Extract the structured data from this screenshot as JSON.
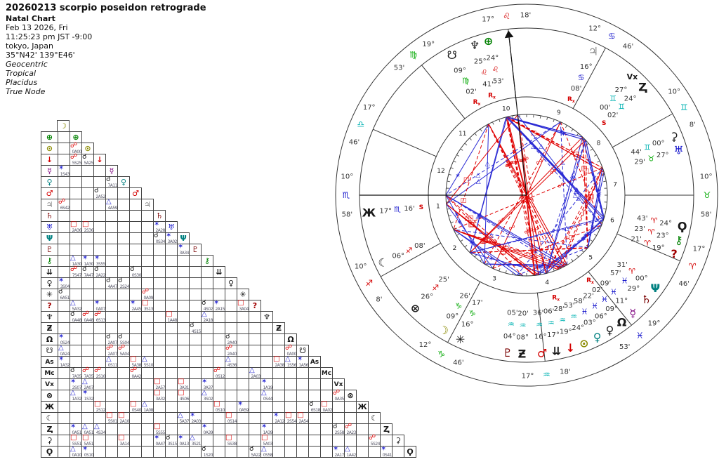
{
  "header": {
    "title": "20260213 scorpio poseidon retrograde",
    "chart_type": "Natal Chart",
    "date": "Feb 13 2026, Fri",
    "time": "11:25:23 pm  JST -9:00",
    "place": "tokyo, Japan",
    "coordinates": "35°N42' 139°E46'",
    "notes": [
      "Geocentric",
      "Tropical",
      "Placidus",
      "True Node"
    ]
  },
  "signs": [
    {
      "id": "aries",
      "glyph": "♈",
      "color": "#d40000"
    },
    {
      "id": "taurus",
      "glyph": "♉",
      "color": "#00a800"
    },
    {
      "id": "gemini",
      "glyph": "♊",
      "color": "#00b2b2"
    },
    {
      "id": "cancer",
      "glyph": "♋",
      "color": "#1414cc"
    },
    {
      "id": "leo",
      "glyph": "♌",
      "color": "#d40000"
    },
    {
      "id": "virgo",
      "glyph": "♍",
      "color": "#00a800"
    },
    {
      "id": "libra",
      "glyph": "♎",
      "color": "#00b2b2"
    },
    {
      "id": "scorpio",
      "glyph": "♏",
      "color": "#1414cc"
    },
    {
      "id": "sagittarius",
      "glyph": "♐",
      "color": "#d40000"
    },
    {
      "id": "capricorn",
      "glyph": "♑",
      "color": "#00a800"
    },
    {
      "id": "aquarius",
      "glyph": "♒",
      "color": "#00b2b2"
    },
    {
      "id": "pisces",
      "glyph": "♓",
      "color": "#1414cc"
    }
  ],
  "planets": [
    {
      "id": "moon",
      "glyph": "☽",
      "color": "#8a8a00",
      "deg": 9,
      "min": 26,
      "sign": "capricorn",
      "flag": ""
    },
    {
      "id": "earth",
      "glyph": "⊕",
      "color": "#008000",
      "deg": 24,
      "min": 53,
      "sign": "leo",
      "flag": ""
    },
    {
      "id": "sun",
      "glyph": "⊙",
      "color": "#8a8a00",
      "deg": 24,
      "min": 53,
      "sign": "aquarius",
      "flag": ""
    },
    {
      "id": "point-arrow-down",
      "glyph": "↓",
      "color": "#d40000",
      "deg": 19,
      "min": 28,
      "sign": "aquarius",
      "flag": "R"
    },
    {
      "id": "mercury",
      "glyph": "☿",
      "color": "#7d007d",
      "deg": 11,
      "min": 9,
      "sign": "pisces",
      "flag": ""
    },
    {
      "id": "venus",
      "glyph": "♀",
      "color": "#008080",
      "deg": 3,
      "min": 58,
      "sign": "pisces",
      "flag": ""
    },
    {
      "id": "mars",
      "glyph": "♂",
      "color": "#d40000",
      "deg": 16,
      "min": 36,
      "sign": "aquarius",
      "flag": ""
    },
    {
      "id": "jupiter",
      "glyph": "♃",
      "color": "#888888",
      "deg": 16,
      "min": 8,
      "sign": "cancer",
      "flag": "R"
    },
    {
      "id": "saturn",
      "glyph": "♄",
      "color": "#7a0000",
      "deg": 29,
      "min": 57,
      "sign": "pisces",
      "flag": ""
    },
    {
      "id": "uranus",
      "glyph": "♅",
      "color": "#1414cc",
      "deg": 27,
      "min": 29,
      "sign": "taurus",
      "flag": ""
    },
    {
      "id": "neptune",
      "glyph": "Ψ",
      "color": "#008080",
      "deg": 0,
      "min": 31,
      "sign": "aries",
      "flag": ""
    },
    {
      "id": "pluto",
      "glyph": "♇",
      "color": "#7a0000",
      "deg": 4,
      "min": 5,
      "sign": "aquarius",
      "flag": ""
    },
    {
      "id": "chiron",
      "glyph": "⚷",
      "color": "#008000",
      "deg": 23,
      "min": 23,
      "sign": "aries",
      "flag": ""
    },
    {
      "id": "point-double-chevron",
      "glyph": "⇊",
      "color": "#1a1a1a",
      "deg": 17,
      "min": 6,
      "sign": "aquarius",
      "flag": ""
    },
    {
      "id": "point-dark-venus",
      "glyph": "♀",
      "color": "#1a1a1a",
      "deg": 6,
      "min": 22,
      "sign": "pisces",
      "flag": ""
    },
    {
      "id": "point-snowflake",
      "glyph": "✳",
      "color": "#1a1a1a",
      "deg": 16,
      "min": 17,
      "sign": "capricorn",
      "flag": ""
    },
    {
      "id": "point-question",
      "glyph": "?",
      "color": "#a00000",
      "deg": 19,
      "min": 21,
      "sign": "aries",
      "flag": ""
    },
    {
      "id": "point-psi-banner",
      "glyph": "♆",
      "color": "#1a1a1a",
      "deg": 25,
      "min": 41,
      "sign": "leo",
      "flag": "R"
    },
    {
      "id": "point-zeta",
      "glyph": "Ƶ",
      "color": "#1a1a1a",
      "deg": 8,
      "min": 20,
      "sign": "aquarius",
      "flag": ""
    },
    {
      "id": "north-node",
      "glyph": "Ω",
      "color": "#1a1a1a",
      "deg": 9,
      "min": 2,
      "sign": "pisces",
      "flag": "R"
    },
    {
      "id": "south-node",
      "glyph": "☋",
      "color": "#1a1a1a",
      "deg": 9,
      "min": 2,
      "sign": "virgo",
      "flag": "R"
    },
    {
      "id": "ascendant",
      "glyph": "As",
      "color": "#1a1a1a",
      "deg": 10,
      "min": 58,
      "sign": "scorpio",
      "flag": "",
      "text_glyph": true,
      "no_wheel_glyph": true
    },
    {
      "id": "midheaven",
      "glyph": "Mc",
      "color": "#1a1a1a",
      "deg": 17,
      "min": 18,
      "sign": "leo",
      "flag": "",
      "text_glyph": true,
      "no_wheel_glyph": true
    },
    {
      "id": "vertex",
      "glyph": "Vx",
      "color": "#1a1a1a",
      "deg": 27,
      "min": 0,
      "sign": "gemini",
      "flag": "",
      "text_glyph": true
    },
    {
      "id": "fortune",
      "glyph": "⊗",
      "color": "#1a1a1a",
      "deg": 26,
      "min": 25,
      "sign": "sagittarius",
      "flag": ""
    },
    {
      "id": "point-cross-trident",
      "glyph": "Ж",
      "color": "#1a1a1a",
      "deg": 17,
      "min": 16,
      "sign": "scorpio",
      "flag": "S"
    },
    {
      "id": "point-crescent",
      "glyph": "☾",
      "color": "#1a1a1a",
      "deg": 6,
      "min": 8,
      "sign": "sagittarius",
      "flag": ""
    },
    {
      "id": "point-z",
      "glyph": "Ⱬ",
      "color": "#1a1a1a",
      "deg": 24,
      "min": 2,
      "sign": "gemini",
      "flag": "S"
    },
    {
      "id": "point-sickle",
      "glyph": "⚳",
      "color": "#1a1a1a",
      "deg": 0,
      "min": 44,
      "sign": "gemini",
      "flag": ""
    },
    {
      "id": "point-qoppa",
      "glyph": "Ϙ",
      "color": "#1a1a1a",
      "deg": 24,
      "min": 43,
      "sign": "aries",
      "flag": ""
    }
  ],
  "houses": [
    {
      "num": 1,
      "deg": 10,
      "min": 58,
      "sign": "scorpio"
    },
    {
      "num": 2,
      "deg": 10,
      "min": 8,
      "sign": "sagittarius"
    },
    {
      "num": 3,
      "deg": 12,
      "min": 46,
      "sign": "capricorn"
    },
    {
      "num": 4,
      "deg": 17,
      "min": 18,
      "sign": "aquarius"
    },
    {
      "num": 5,
      "deg": 19,
      "min": 53,
      "sign": "pisces"
    },
    {
      "num": 6,
      "deg": 17,
      "min": 46,
      "sign": "aries"
    },
    {
      "num": 7,
      "deg": 10,
      "min": 58,
      "sign": "taurus"
    },
    {
      "num": 8,
      "deg": 10,
      "min": 8,
      "sign": "gemini"
    },
    {
      "num": 9,
      "deg": 12,
      "min": 46,
      "sign": "cancer"
    },
    {
      "num": 10,
      "deg": 17,
      "min": 18,
      "sign": "leo"
    },
    {
      "num": 11,
      "deg": 19,
      "min": 53,
      "sign": "virgo"
    },
    {
      "num": 12,
      "deg": 17,
      "min": 46,
      "sign": "libra"
    }
  ],
  "aspects": [
    {
      "id": "conjunction",
      "glyph": "☌",
      "angle": 0,
      "orb": 8,
      "color": "#1a1a1a",
      "line": false
    },
    {
      "id": "sextile",
      "glyph": "✶",
      "angle": 60,
      "orb": 4,
      "color": "#2b2bd4",
      "line": true
    },
    {
      "id": "square",
      "glyph": "□",
      "angle": 90,
      "orb": 6,
      "color": "#e00000",
      "line": true
    },
    {
      "id": "trine",
      "glyph": "△",
      "angle": 120,
      "orb": 6,
      "color": "#2b2bd4",
      "line": true
    },
    {
      "id": "opposition",
      "glyph": "☍",
      "angle": 180,
      "orb": 8,
      "color": "#e00000",
      "line": true
    }
  ],
  "wheel": {
    "colors": {
      "ring": "#333333",
      "hard": "#e00000",
      "soft": "#2b2bd4",
      "flag": "#d40000",
      "label": "#333333",
      "house_number": "#222222"
    }
  },
  "grid": {
    "border": "#444444",
    "orb_text": "#556"
  }
}
